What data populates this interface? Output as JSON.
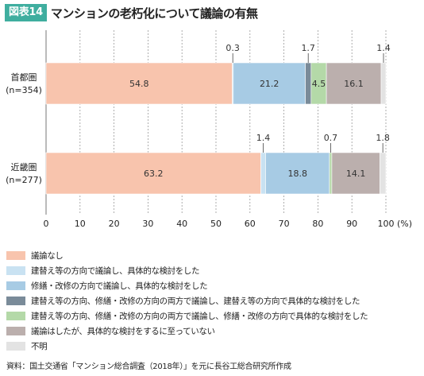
{
  "figure": {
    "badge": "図表14",
    "title": "マンションの老朽化について議論の有無"
  },
  "chart_data": {
    "type": "bar",
    "orientation": "horizontal",
    "stacked": true,
    "categories": [
      {
        "name": "首都圏",
        "n": "(n=354)"
      },
      {
        "name": "近畿圏",
        "n": "(n=277)"
      }
    ],
    "series": [
      {
        "name": "議論なし",
        "color": "#f8c4ad",
        "values": [
          54.8,
          63.2
        ]
      },
      {
        "name": "建替え等の方向で議論し、具体的な検討をした",
        "color": "#c9e2f2",
        "values": [
          0.3,
          1.4
        ]
      },
      {
        "name": "修繕・改修の方向で議論し、具体的な検討をした",
        "color": "#a7cbe4",
        "values": [
          21.2,
          18.8
        ]
      },
      {
        "name": "建替え等の方向、修繕・改修の方向の両方で議論し、建替え等の方向で具体的な検討をした",
        "color": "#7a8b99",
        "values": [
          1.7,
          null
        ]
      },
      {
        "name": "建替え等の方向、修繕・改修の方向の両方で議論し、修繕・改修の方向で具体的な検討をした",
        "color": "#b4d9a8",
        "values": [
          4.5,
          0.7
        ]
      },
      {
        "name": "議論はしたが、具体的な検討をするに至っていない",
        "color": "#bbafad",
        "values": [
          16.1,
          14.1
        ]
      },
      {
        "name": "不明",
        "color": "#e3e3e3",
        "values": [
          1.4,
          1.8
        ]
      }
    ],
    "data_labels": [
      [
        {
          "series": 0,
          "text": "54.8",
          "position": "inside"
        },
        {
          "series": 1,
          "text": "0.3",
          "position": "above"
        },
        {
          "series": 2,
          "text": "21.2",
          "position": "inside"
        },
        {
          "series": 3,
          "text": "1.7",
          "position": "above"
        },
        {
          "series": 4,
          "text": "4.5",
          "position": "inside"
        },
        {
          "series": 5,
          "text": "16.1",
          "position": "inside"
        },
        {
          "series": 6,
          "text": "1.4",
          "position": "above"
        }
      ],
      [
        {
          "series": 0,
          "text": "63.2",
          "position": "inside"
        },
        {
          "series": 1,
          "text": "1.4",
          "position": "above"
        },
        {
          "series": 2,
          "text": "18.8",
          "position": "inside"
        },
        {
          "series": 4,
          "text": "0.7",
          "position": "above"
        },
        {
          "series": 5,
          "text": "14.1",
          "position": "inside"
        },
        {
          "series": 6,
          "text": "1.8",
          "position": "above"
        }
      ]
    ],
    "x_ticks": [
      "0",
      "10",
      "20",
      "30",
      "40",
      "50",
      "60",
      "70",
      "80",
      "90",
      "100"
    ],
    "x_unit": "(%)",
    "xlim": [
      0,
      100
    ],
    "grid": "vertical",
    "legend_position": "bottom"
  },
  "source": "資料：国土交通省「マンション総合調査（2018年）」を元に長谷工総合研究所作成"
}
